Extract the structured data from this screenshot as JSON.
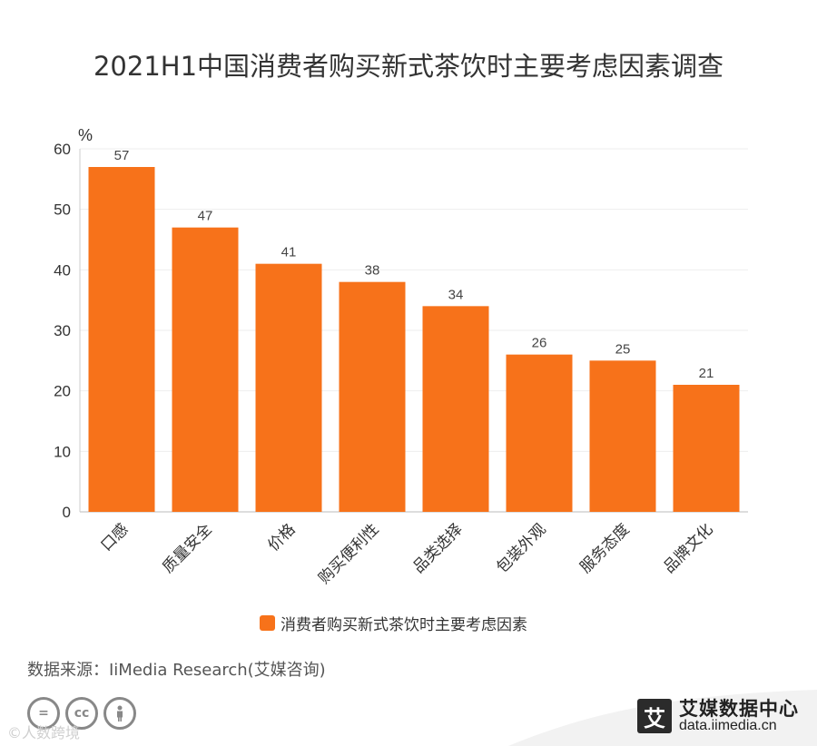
{
  "title": "2021H1中国消费者购买新式茶饮时主要考虑因素调查",
  "chart_data": {
    "type": "bar",
    "unit": "%",
    "categories": [
      "口感",
      "质量安全",
      "价格",
      "购买便利性",
      "品类选择",
      "包装外观",
      "服务态度",
      "品牌文化"
    ],
    "series": [
      {
        "name": "消费者购买新式茶饮时主要考虑因素",
        "values": [
          57,
          47,
          41,
          38,
          34,
          26,
          25,
          21
        ],
        "color": "#f7721a"
      }
    ],
    "yticks": [
      0,
      10,
      20,
      30,
      40,
      50,
      60
    ],
    "ylim": [
      0,
      60
    ],
    "grid": true,
    "legend_position": "bottom"
  },
  "source": "数据来源：IiMedia Research(艾媒咨询)",
  "license_icons": [
    "=",
    "cc",
    "person"
  ],
  "watermark": "©人数跨境",
  "brand": {
    "logo_char": "艾",
    "name": "艾媒数据中心",
    "url": "data.iimedia.cn"
  }
}
